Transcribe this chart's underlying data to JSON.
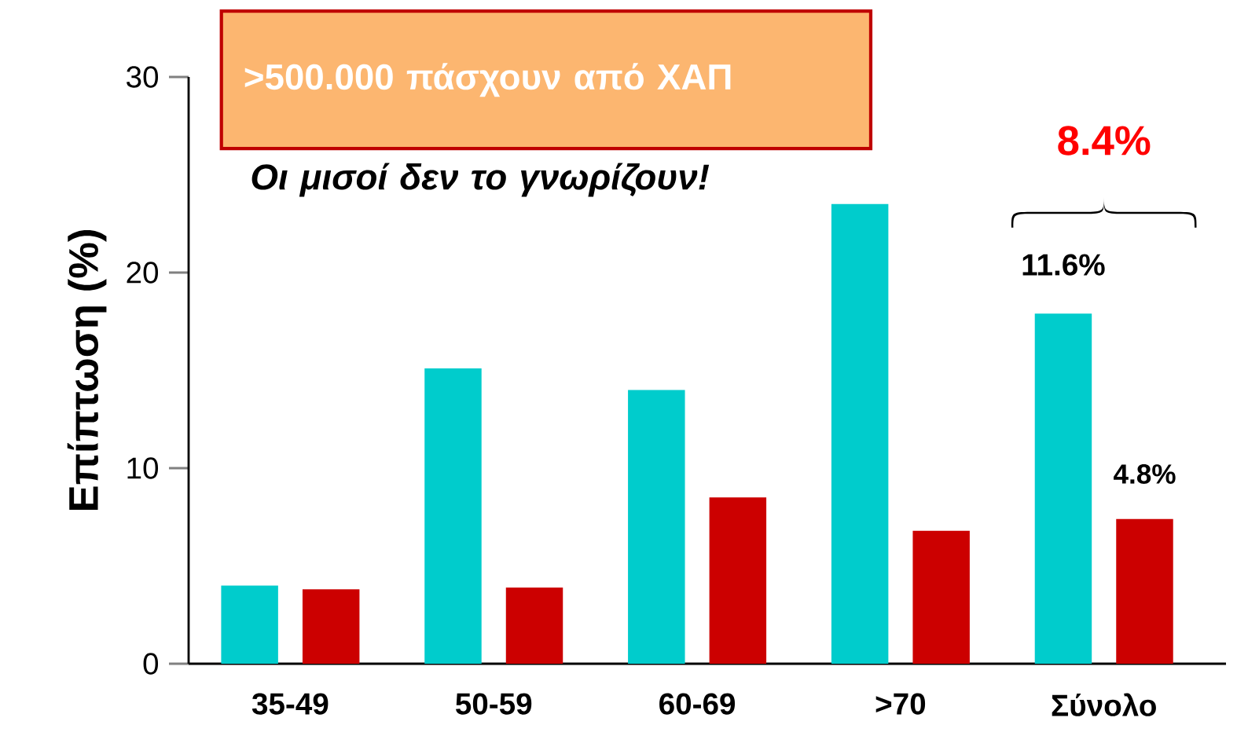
{
  "chart_data": {
    "type": "bar",
    "ylabel": "Επίπτωση (%)",
    "categories": [
      "35-49",
      "50-59",
      "60-69",
      ">70",
      "Σύνολο"
    ],
    "series": [
      {
        "color": "#00cccc",
        "values": [
          4.0,
          15.1,
          14.0,
          23.5,
          17.9
        ]
      },
      {
        "color": "#cc0000",
        "values": [
          3.8,
          3.9,
          8.5,
          6.8,
          7.4
        ]
      }
    ],
    "ylim": [
      0,
      30
    ],
    "yticks": [
      0,
      10,
      20,
      30
    ],
    "grid": false,
    "annotations": [
      ">500.000 πάσχουν από ΧΑΠ",
      "Οι μισοί δεν το γνωρίζουν!",
      "11.6%",
      "4.8%",
      "8.4%"
    ]
  }
}
